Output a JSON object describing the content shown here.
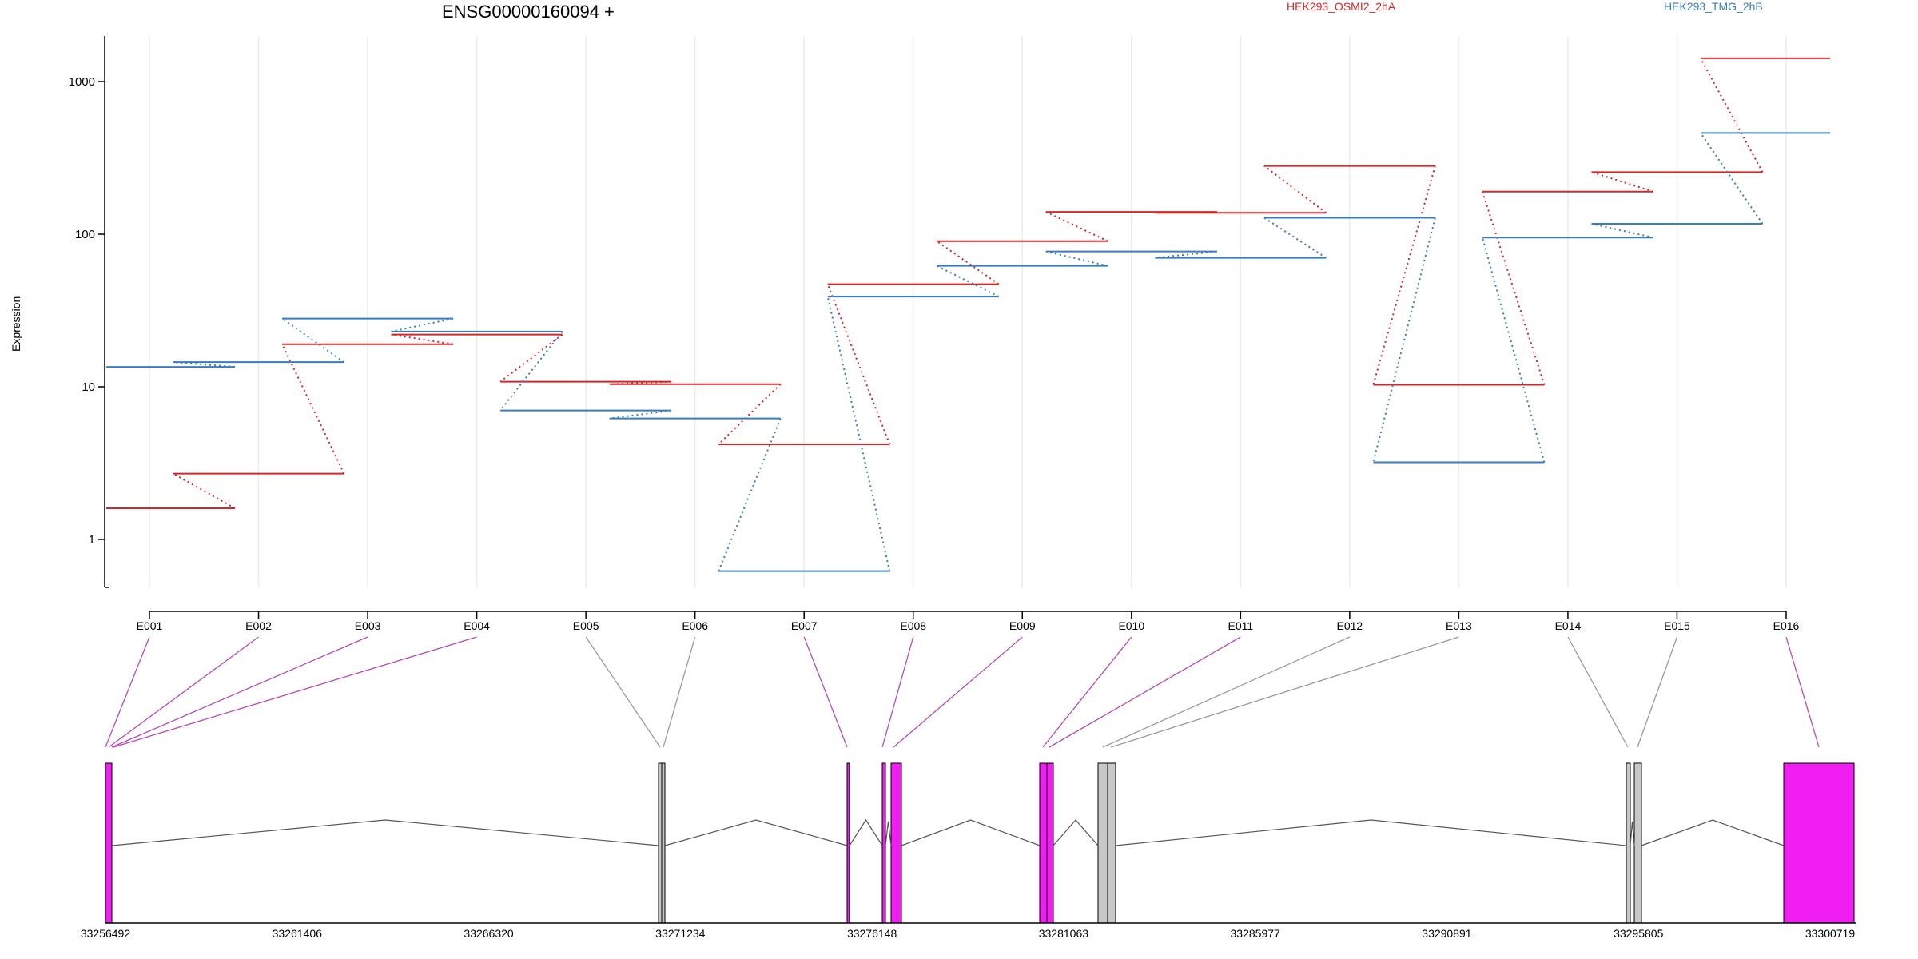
{
  "chart_data": {
    "type": "line",
    "title": "ENSG00000160094 +",
    "ylabel": "Expression",
    "xlabel": "",
    "yscale": "log",
    "ylim": [
      0.5,
      1800
    ],
    "yticks": [
      1,
      10,
      100,
      1000
    ],
    "ytick_labels": [
      "1",
      "10",
      "100",
      "1000"
    ],
    "grid": "vertical",
    "legend_position": "top",
    "categories": [
      "E001",
      "E002",
      "E003",
      "E004",
      "E005",
      "E006",
      "E007",
      "E008",
      "E009",
      "E010",
      "E011",
      "E012",
      "E013",
      "E014",
      "E015",
      "E016"
    ],
    "series": [
      {
        "name": "HEK293_OSMI2_2hA",
        "color": "#d62728",
        "values": [
          1.6,
          2.7,
          19,
          22,
          10.8,
          10.4,
          4.2,
          47,
          90,
          140,
          138,
          280,
          10.3,
          190,
          255,
          1420
        ]
      },
      {
        "name": "HEK293_TMG_2hB",
        "color": "#3a7dbf",
        "values": [
          13.5,
          14.5,
          28,
          23,
          7,
          6.2,
          0.62,
          39,
          62,
          77,
          70,
          128,
          3.2,
          95,
          117,
          460
        ]
      }
    ],
    "gene_model": {
      "coordinates": [
        "33256492",
        "33261406",
        "33266320",
        "33271234",
        "33276148",
        "33281063",
        "33285977",
        "33290891",
        "33295805",
        "33300719"
      ],
      "exon_colors": {
        "significant": "#f01ef0",
        "not_significant": "#c8c8c8"
      },
      "exons": [
        {
          "id": "E001",
          "significant": true
        },
        {
          "id": "E002",
          "significant": true
        },
        {
          "id": "E003",
          "significant": true
        },
        {
          "id": "E004",
          "significant": true
        },
        {
          "id": "E005",
          "significant": false
        },
        {
          "id": "E006",
          "significant": false
        },
        {
          "id": "E007",
          "significant": true
        },
        {
          "id": "E008",
          "significant": true
        },
        {
          "id": "E009",
          "significant": true
        },
        {
          "id": "E010",
          "significant": true
        },
        {
          "id": "E011",
          "significant": true
        },
        {
          "id": "E012",
          "significant": false
        },
        {
          "id": "E013",
          "significant": false
        },
        {
          "id": "E014",
          "significant": false
        },
        {
          "id": "E015",
          "significant": false
        },
        {
          "id": "E016",
          "significant": true
        }
      ]
    }
  }
}
